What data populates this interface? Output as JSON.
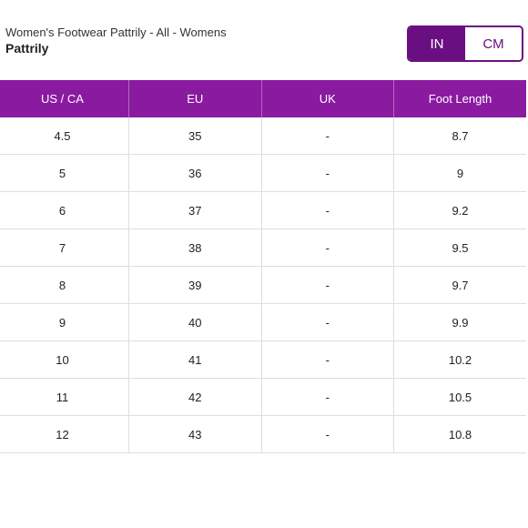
{
  "header": {
    "subtitle": "Women's Footwear Pattrily - All - Womens",
    "brand": "Pattrily"
  },
  "unit_toggle": {
    "options": [
      "IN",
      "CM"
    ],
    "selected": "IN",
    "active_color": "#6a0f82"
  },
  "table": {
    "header_color": "#8a1aa0",
    "columns": [
      "US / CA",
      "EU",
      "UK",
      "Foot Length"
    ],
    "rows": [
      [
        "4.5",
        "35",
        "-",
        "8.7"
      ],
      [
        "5",
        "36",
        "-",
        "9"
      ],
      [
        "6",
        "37",
        "-",
        "9.2"
      ],
      [
        "7",
        "38",
        "-",
        "9.5"
      ],
      [
        "8",
        "39",
        "-",
        "9.7"
      ],
      [
        "9",
        "40",
        "-",
        "9.9"
      ],
      [
        "10",
        "41",
        "-",
        "10.2"
      ],
      [
        "11",
        "42",
        "-",
        "10.5"
      ],
      [
        "12",
        "43",
        "-",
        "10.8"
      ]
    ]
  }
}
